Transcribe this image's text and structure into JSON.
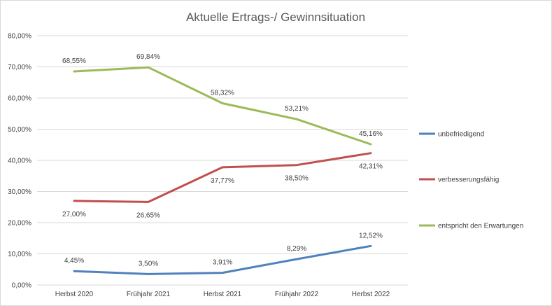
{
  "chart_data": {
    "type": "line",
    "title": "Aktuelle Ertrags-/ Gewinnsituation",
    "categories": [
      "Herbst 2020",
      "Frühjahr 2021",
      "Herbst 2021",
      "Frühjahr 2022",
      "Herbst 2022"
    ],
    "y_ticks": [
      "0,00%",
      "10,00%",
      "20,00%",
      "30,00%",
      "40,00%",
      "50,00%",
      "60,00%",
      "70,00%",
      "80,00%"
    ],
    "ylim": [
      0,
      80
    ],
    "grid": true,
    "legend_position": "right",
    "series": [
      {
        "name": "unbefriedigend",
        "color": "#4f81bd",
        "values": [
          4.45,
          3.5,
          3.91,
          8.29,
          12.52
        ],
        "labels": [
          "4,45%",
          "3,50%",
          "3,91%",
          "8,29%",
          "12,52%"
        ]
      },
      {
        "name": "verbesserungsfähig",
        "color": "#c0504d",
        "values": [
          27.0,
          26.65,
          37.77,
          38.5,
          42.31
        ],
        "labels": [
          "27,00%",
          "26,65%",
          "37,77%",
          "38,50%",
          "42,31%"
        ]
      },
      {
        "name": "entspricht den Erwartungen",
        "color": "#9bbb59",
        "values": [
          68.55,
          69.84,
          58.32,
          53.21,
          45.16
        ],
        "labels": [
          "68,55%",
          "69,84%",
          "58,32%",
          "53,21%",
          "45,16%"
        ]
      }
    ]
  }
}
